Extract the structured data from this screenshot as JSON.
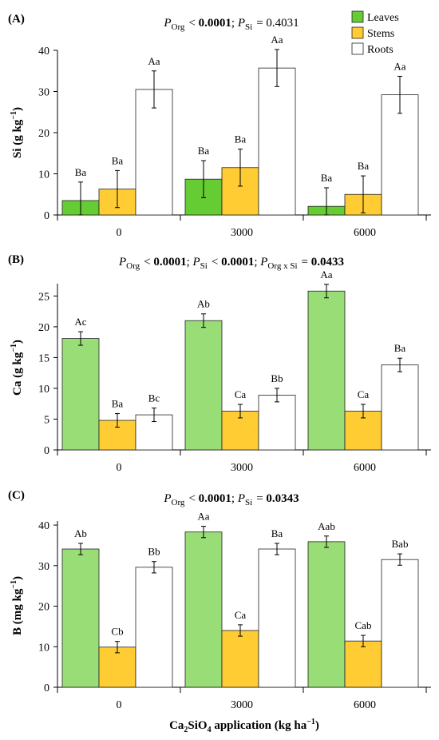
{
  "legend": {
    "items": [
      {
        "name": "Leaves",
        "color": "#66cc33"
      },
      {
        "name": "Stems",
        "color": "#ffcc33"
      },
      {
        "name": "Roots",
        "color": "#ffffff"
      }
    ]
  },
  "x_axis_title": {
    "pre": "Ca",
    "sub1": "2",
    "mid": "SiO",
    "sub2": "4",
    "post": " application (kg ha",
    "sup": "−1",
    "end": ")"
  },
  "panels": [
    {
      "label": "(A)",
      "title": [
        {
          "t": "P",
          "style": "italic"
        },
        {
          "t": "Org",
          "style": "sub"
        },
        {
          "t": " < ",
          "style": "normal"
        },
        {
          "t": "0.0001",
          "style": "bold"
        },
        {
          "t": "; ",
          "style": "normal"
        },
        {
          "t": "P",
          "style": "italic"
        },
        {
          "t": "Si",
          "style": "sub"
        },
        {
          "t": " = 0.4031",
          "style": "normal"
        }
      ],
      "ylabel": {
        "main": "Si (g kg",
        "sup": "−1",
        "end": ")"
      }
    },
    {
      "label": "(B)",
      "title": [
        {
          "t": "P",
          "style": "italic"
        },
        {
          "t": "Org",
          "style": "sub"
        },
        {
          "t": " < ",
          "style": "normal"
        },
        {
          "t": "0.0001",
          "style": "bold"
        },
        {
          "t": "; ",
          "style": "normal"
        },
        {
          "t": "P",
          "style": "italic"
        },
        {
          "t": "Si",
          "style": "sub"
        },
        {
          "t": " < ",
          "style": "normal"
        },
        {
          "t": "0.0001",
          "style": "bold"
        },
        {
          "t": "; ",
          "style": "normal"
        },
        {
          "t": "P",
          "style": "italic"
        },
        {
          "t": "Org x Si",
          "style": "sub"
        },
        {
          "t": " = ",
          "style": "normal"
        },
        {
          "t": "0.0433",
          "style": "bold"
        }
      ],
      "ylabel": {
        "main": "Ca (g kg",
        "sup": "−1",
        "end": ")"
      }
    },
    {
      "label": "(C)",
      "title": [
        {
          "t": "P",
          "style": "italic"
        },
        {
          "t": "Org",
          "style": "sub"
        },
        {
          "t": " < ",
          "style": "normal"
        },
        {
          "t": "0.0001",
          "style": "bold"
        },
        {
          "t": "; ",
          "style": "normal"
        },
        {
          "t": "P",
          "style": "italic"
        },
        {
          "t": "Si",
          "style": "sub"
        },
        {
          "t": " = ",
          "style": "normal"
        },
        {
          "t": "0.0343",
          "style": "bold"
        }
      ],
      "ylabel": {
        "main": "B (mg kg",
        "sup": "−1",
        "end": ")"
      }
    }
  ],
  "chart_data": [
    {
      "type": "bar",
      "categories": [
        "0",
        "3000",
        "6000"
      ],
      "ylim": [
        0,
        40
      ],
      "yticks": [
        0,
        10,
        20,
        30,
        40
      ],
      "series": [
        {
          "name": "Leaves",
          "color": "#66cc33",
          "values": [
            3.5,
            8.7,
            2.1
          ],
          "errors": [
            4.5,
            4.5,
            4.5
          ],
          "labels": [
            "Ba",
            "Ba",
            "Ba"
          ]
        },
        {
          "name": "Stems",
          "color": "#ffcc33",
          "values": [
            6.3,
            11.5,
            5.0
          ],
          "errors": [
            4.5,
            4.5,
            4.5
          ],
          "labels": [
            "Ba",
            "Ba",
            "Ba"
          ]
        },
        {
          "name": "Roots",
          "color": "#ffffff",
          "values": [
            30.5,
            35.7,
            29.2
          ],
          "errors": [
            4.5,
            4.5,
            4.5
          ],
          "labels": [
            "Aa",
            "Aa",
            "Aa"
          ]
        }
      ]
    },
    {
      "type": "bar",
      "categories": [
        "0",
        "3000",
        "6000"
      ],
      "ylim": [
        0,
        27
      ],
      "yticks": [
        0,
        5,
        10,
        15,
        20,
        25
      ],
      "series": [
        {
          "name": "Leaves",
          "color": "#99dd77",
          "values": [
            18.1,
            21.0,
            25.8
          ],
          "errors": [
            1.1,
            1.1,
            1.1
          ],
          "labels": [
            "Ac",
            "Ab",
            "Aa"
          ]
        },
        {
          "name": "Stems",
          "color": "#ffcc33",
          "values": [
            4.8,
            6.3,
            6.3
          ],
          "errors": [
            1.1,
            1.1,
            1.1
          ],
          "labels": [
            "Ba",
            "Ca",
            "Ca"
          ]
        },
        {
          "name": "Roots",
          "color": "#ffffff",
          "values": [
            5.7,
            8.9,
            13.8
          ],
          "errors": [
            1.1,
            1.1,
            1.1
          ],
          "labels": [
            "Bc",
            "Bb",
            "Ba"
          ]
        }
      ]
    },
    {
      "type": "bar",
      "categories": [
        "0",
        "3000",
        "6000"
      ],
      "ylim": [
        0,
        41
      ],
      "yticks": [
        0,
        10,
        20,
        30,
        40
      ],
      "series": [
        {
          "name": "Leaves",
          "color": "#99dd77",
          "values": [
            34.1,
            38.3,
            35.9
          ],
          "errors": [
            1.4,
            1.4,
            1.4
          ],
          "labels": [
            "Ab",
            "Aa",
            "Aab"
          ]
        },
        {
          "name": "Stems",
          "color": "#ffcc33",
          "values": [
            9.9,
            14.0,
            11.4
          ],
          "errors": [
            1.4,
            1.4,
            1.4
          ],
          "labels": [
            "Cb",
            "Ca",
            "Cab"
          ]
        },
        {
          "name": "Roots",
          "color": "#ffffff",
          "values": [
            29.6,
            34.1,
            31.5
          ],
          "errors": [
            1.4,
            1.4,
            1.4
          ],
          "labels": [
            "Bb",
            "Ba",
            "Bab"
          ]
        }
      ]
    }
  ]
}
